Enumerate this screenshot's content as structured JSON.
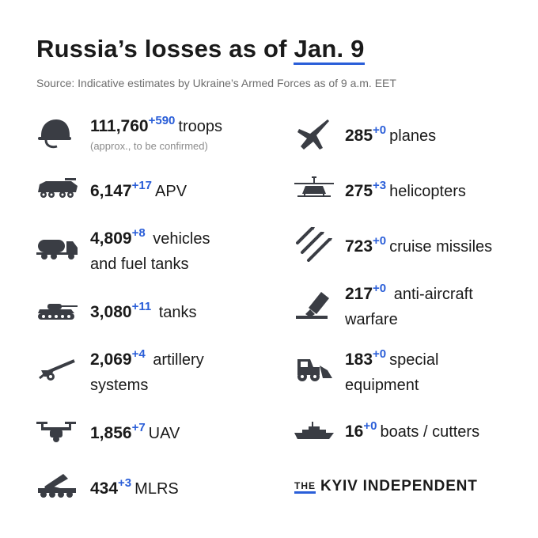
{
  "title_prefix": "Russia’s losses as of ",
  "title_date": "Jan. 9",
  "source": "Source: Indicative estimates by Ukraine’s Armed Forces as of 9 a.m. EET",
  "accent": "#2a5ed8",
  "items": [
    {
      "icon": "helmet-icon",
      "value": "111,760",
      "delta": "+590",
      "label": "troops",
      "note": "(approx., to be confirmed)"
    },
    {
      "icon": "apv-icon",
      "value": "6,147",
      "delta": "+17",
      "label": "APV"
    },
    {
      "icon": "truck-icon",
      "value": "4,809",
      "delta": "+8",
      "label": "vehicles",
      "label2": "and fuel tanks"
    },
    {
      "icon": "tank-icon",
      "value": "3,080",
      "delta": "+11",
      "label": "tanks"
    },
    {
      "icon": "artillery-icon",
      "value": "2,069",
      "delta": "+4",
      "label": "artillery",
      "label2": "systems"
    },
    {
      "icon": "drone-icon",
      "value": "1,856",
      "delta": "+7",
      "label": "UAV"
    },
    {
      "icon": "mlrs-icon",
      "value": "434",
      "delta": "+3",
      "label": "MLRS"
    },
    {
      "icon": "plane-icon",
      "value": "285",
      "delta": "+0",
      "label": "planes"
    },
    {
      "icon": "helicopter-icon",
      "value": "275",
      "delta": "+3",
      "label": "helicopters"
    },
    {
      "icon": "missile-icon",
      "value": "723",
      "delta": "+0",
      "label": "cruise missiles"
    },
    {
      "icon": "anti-aircraft-icon",
      "value": "217",
      "delta": "+0",
      "label": "anti-aircraft",
      "label2": "warfare"
    },
    {
      "icon": "loader-icon",
      "value": "183",
      "delta": "+0",
      "label": "special",
      "label2": "equipment"
    },
    {
      "icon": "ship-icon",
      "value": "16",
      "delta": "+0",
      "label": "boats / cutters"
    }
  ],
  "logo": {
    "the": "THE",
    "name": "KYIV INDEPENDENT"
  }
}
